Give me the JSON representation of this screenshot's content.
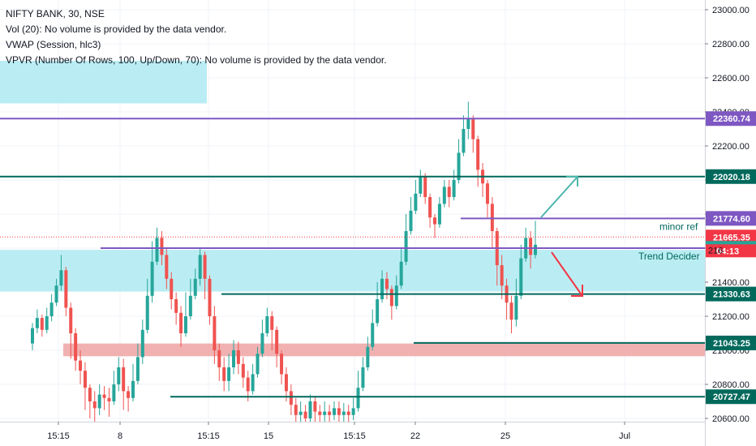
{
  "legend": {
    "line1": "NIFTY BANK, 30, NSE",
    "line2": "Vol (20): No volume is provided by the data vendor.",
    "line3": "VWAP (Session, hlc3)",
    "line4": "VPVR (Number Of Rows, 100, Up/Down, 70): No volume is provided by the data vendor."
  },
  "colors": {
    "up": "#26a69a",
    "down": "#ef5350",
    "purple": "#7e57c2",
    "teal_dark": "#00695c",
    "zone_blue": "#b2ebf2",
    "zone_red": "#f0a8a8",
    "price_red": "#f23645",
    "arrow_green": "#4db6ac"
  },
  "chart_data": {
    "type": "candlestick",
    "y_range": [
      20600,
      23000
    ],
    "y_ticks": [
      "23000.00",
      "22800.00",
      "22600.00",
      "22400.00",
      "22200.00",
      "22000.00",
      "21800.00",
      "21600.00",
      "21400.00",
      "21200.00",
      "21000.00",
      "20800.00",
      "20600.00"
    ],
    "x_ticks": [
      "15:15",
      "8",
      "15:15",
      "15",
      "15:15",
      "22",
      "25",
      "Jul"
    ],
    "levels": [
      {
        "name": "level-22360",
        "price": 22360.74,
        "label": "22360.74",
        "color": "purple"
      },
      {
        "name": "level-22020",
        "price": 22020.18,
        "label": "22020.18",
        "color": "teal_dark"
      },
      {
        "name": "level-21774",
        "price": 21774.6,
        "label": "21774.60",
        "color": "purple"
      },
      {
        "name": "level-21665",
        "price": 21665.35,
        "label": "21665.35",
        "color": "price_red"
      },
      {
        "name": "level-21598",
        "price": 21598.92,
        "label": "21598.92",
        "color": "up"
      },
      {
        "name": "level-21330",
        "price": 21330.63,
        "label": "21330.63",
        "color": "teal_dark"
      },
      {
        "name": "level-21043",
        "price": 21043.25,
        "label": "21043.25",
        "color": "teal_dark"
      },
      {
        "name": "level-20727",
        "price": 20727.47,
        "label": "20727.47",
        "color": "teal_dark"
      }
    ],
    "countdown": "04:13",
    "partial_tick": "216",
    "annotations": {
      "minor_ref": "minor ref",
      "trend_decider": "Trend Decider"
    },
    "zones": [
      {
        "name": "upper-blue-zone",
        "top": 22700,
        "bottom": 22450
      },
      {
        "name": "trend-zone",
        "top": 21590,
        "bottom": 21345
      },
      {
        "name": "demand-zone",
        "top": 21040,
        "bottom": 20965
      }
    ],
    "candles_approx": [
      [
        21040,
        21130,
        21000,
        21160
      ],
      [
        21130,
        21190,
        21100,
        21240
      ],
      [
        21190,
        21120,
        21080,
        21210
      ],
      [
        21120,
        21200,
        21100,
        21250
      ],
      [
        21200,
        21280,
        21170,
        21330
      ],
      [
        21280,
        21380,
        21260,
        21420
      ],
      [
        21380,
        21470,
        21350,
        21560
      ],
      [
        21470,
        21250,
        21200,
        21490
      ],
      [
        21250,
        21100,
        20950,
        21280
      ],
      [
        21100,
        20940,
        20880,
        21130
      ],
      [
        20940,
        20880,
        20800,
        21000
      ],
      [
        20880,
        20780,
        20650,
        20930
      ],
      [
        20780,
        20700,
        20600,
        20800
      ],
      [
        20700,
        20660,
        20580,
        20760
      ],
      [
        20660,
        20740,
        20620,
        20800
      ],
      [
        20740,
        20720,
        20650,
        20790
      ],
      [
        20720,
        20700,
        20610,
        20780
      ],
      [
        20700,
        20800,
        20680,
        20880
      ],
      [
        20800,
        20900,
        20760,
        20960
      ],
      [
        20900,
        20760,
        20650,
        20950
      ],
      [
        20760,
        20720,
        20640,
        20790
      ],
      [
        20720,
        20820,
        20700,
        20920
      ],
      [
        20820,
        20960,
        20800,
        21040
      ],
      [
        20960,
        21120,
        20920,
        21180
      ],
      [
        21120,
        21320,
        21100,
        21420
      ],
      [
        21320,
        21520,
        21280,
        21640
      ],
      [
        21520,
        21660,
        21500,
        21720
      ],
      [
        21660,
        21560,
        21500,
        21700
      ],
      [
        21560,
        21420,
        21360,
        21600
      ],
      [
        21420,
        21300,
        21240,
        21460
      ],
      [
        21300,
        21220,
        21150,
        21340
      ],
      [
        21220,
        21100,
        21020,
        21260
      ],
      [
        21100,
        21200,
        21080,
        21340
      ],
      [
        21200,
        21320,
        21180,
        21420
      ],
      [
        21320,
        21420,
        21300,
        21480
      ],
      [
        21420,
        21560,
        21380,
        21600
      ],
      [
        21560,
        21420,
        21300,
        21580
      ],
      [
        21420,
        21200,
        21150,
        21440
      ],
      [
        21200,
        21000,
        20920,
        21260
      ],
      [
        21000,
        20900,
        20820,
        21040
      ],
      [
        20900,
        20820,
        20760,
        20960
      ],
      [
        20820,
        20900,
        20760,
        20980
      ],
      [
        20900,
        21000,
        20860,
        21060
      ],
      [
        21000,
        20920,
        20860,
        21050
      ],
      [
        20920,
        20840,
        20780,
        20960
      ],
      [
        20840,
        20760,
        20700,
        20880
      ],
      [
        20760,
        20860,
        20740,
        20920
      ],
      [
        20860,
        20980,
        20840,
        21020
      ],
      [
        20980,
        21100,
        20960,
        21180
      ],
      [
        21100,
        21200,
        21080,
        21250
      ],
      [
        21200,
        21120,
        21000,
        21230
      ],
      [
        21120,
        20980,
        20900,
        21140
      ],
      [
        20980,
        20860,
        20800,
        21000
      ],
      [
        20860,
        20760,
        20700,
        20900
      ],
      [
        20760,
        20680,
        20620,
        20800
      ],
      [
        20680,
        20620,
        20580,
        20720
      ],
      [
        20620,
        20640,
        20560,
        20700
      ],
      [
        20640,
        20600,
        20560,
        20680
      ],
      [
        20600,
        20700,
        20580,
        20740
      ],
      [
        20700,
        20640,
        20580,
        20730
      ],
      [
        20640,
        20620,
        20560,
        20680
      ],
      [
        20620,
        20640,
        20570,
        20700
      ],
      [
        20640,
        20620,
        20580,
        20680
      ],
      [
        20620,
        20660,
        20590,
        20700
      ],
      [
        20660,
        20620,
        20580,
        20700
      ],
      [
        20620,
        20640,
        20580,
        20690
      ],
      [
        20640,
        20620,
        20580,
        20680
      ],
      [
        20620,
        20660,
        20590,
        20720
      ],
      [
        20660,
        20780,
        20640,
        20880
      ],
      [
        20780,
        20900,
        20760,
        20960
      ],
      [
        20900,
        21020,
        20880,
        21080
      ],
      [
        21020,
        21160,
        21000,
        21240
      ],
      [
        21160,
        21300,
        21140,
        21400
      ],
      [
        21300,
        21420,
        21280,
        21470
      ],
      [
        21420,
        21360,
        21300,
        21460
      ],
      [
        21360,
        21260,
        21180,
        21380
      ],
      [
        21260,
        21380,
        21240,
        21440
      ],
      [
        21380,
        21520,
        21360,
        21600
      ],
      [
        21520,
        21700,
        21500,
        21800
      ],
      [
        21700,
        21820,
        21680,
        21900
      ],
      [
        21820,
        21920,
        21800,
        22000
      ],
      [
        21920,
        22020,
        21900,
        22060
      ],
      [
        22020,
        21900,
        21860,
        22040
      ],
      [
        21900,
        21780,
        21720,
        21920
      ],
      [
        21780,
        21740,
        21660,
        21800
      ],
      [
        21740,
        21860,
        21720,
        21900
      ],
      [
        21860,
        21960,
        21840,
        22000
      ],
      [
        21960,
        21900,
        21840,
        22000
      ],
      [
        21900,
        22000,
        21880,
        22060
      ],
      [
        22000,
        22160,
        21980,
        22240
      ],
      [
        22160,
        22300,
        22140,
        22380
      ],
      [
        22300,
        22360,
        22240,
        22460
      ],
      [
        22360,
        22240,
        22160,
        22380
      ],
      [
        22240,
        22060,
        21960,
        22260
      ],
      [
        22060,
        21980,
        21900,
        22100
      ],
      [
        21980,
        21860,
        21780,
        22000
      ],
      [
        21860,
        21700,
        21600,
        21900
      ],
      [
        21700,
        21500,
        21380,
        21720
      ],
      [
        21500,
        21380,
        21300,
        21560
      ],
      [
        21380,
        21280,
        21180,
        21420
      ],
      [
        21280,
        21180,
        21100,
        21320
      ],
      [
        21180,
        21320,
        21140,
        21420
      ],
      [
        21320,
        21540,
        21300,
        21620
      ],
      [
        21540,
        21660,
        21520,
        21720
      ],
      [
        21660,
        21560,
        21480,
        21700
      ],
      [
        21560,
        21620,
        21540,
        21760
      ]
    ]
  }
}
